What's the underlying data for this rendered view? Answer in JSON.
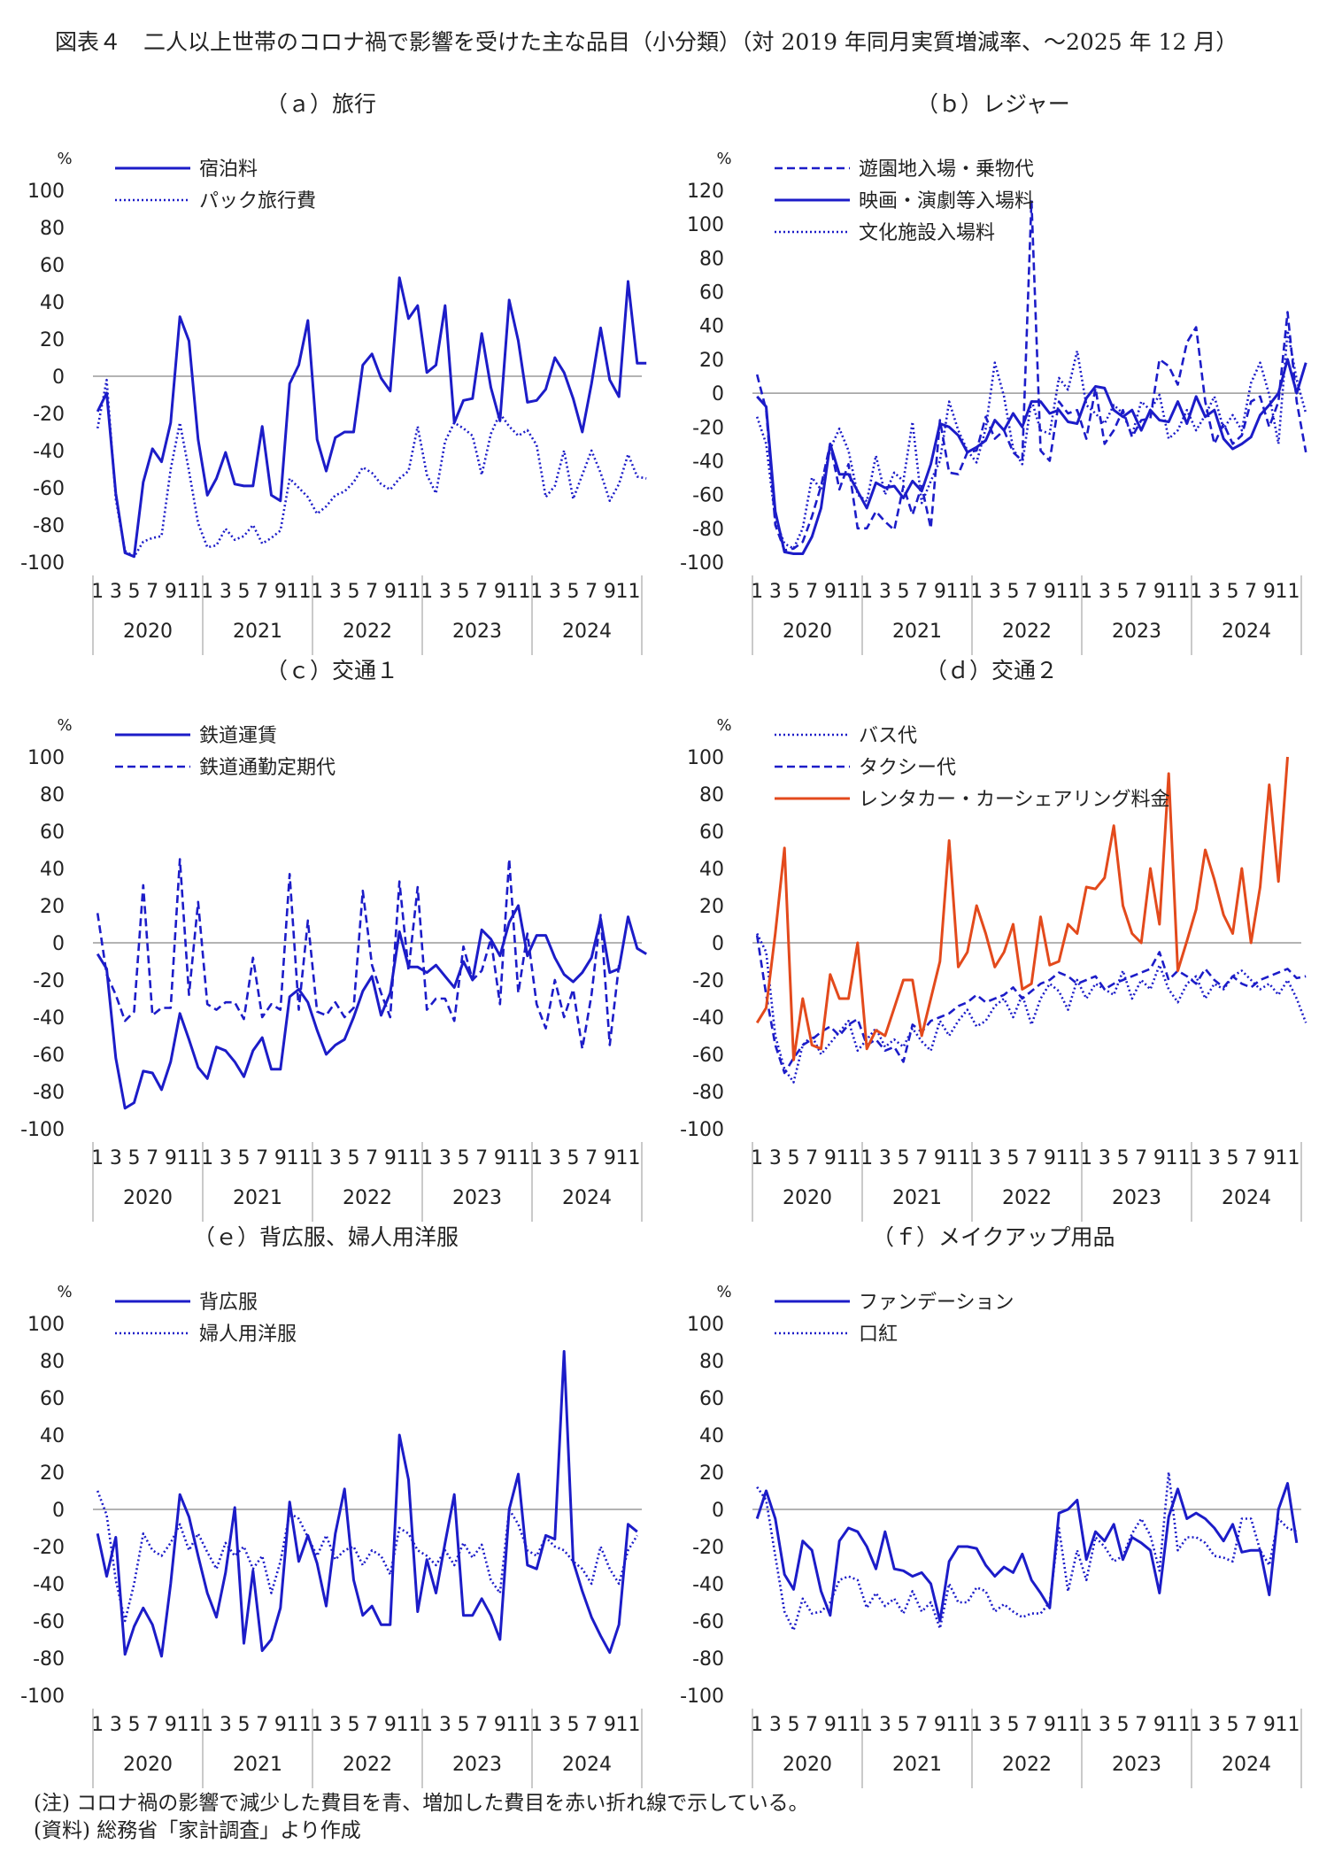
{
  "page_title": "図表４　二人以上世帯のコロナ禍で影響を受けた主な品目（小分類）（対 2019 年同月実質増減率、～2025 年 12 月）",
  "notes": [
    "(注) コロナ禍の影響で減少した費目を青、増加した費目を赤い折れ線で示している。",
    "(資料) 総務省「家計調査」より作成"
  ],
  "chart_data": [
    {
      "type": "line",
      "title": "（ａ）旅行",
      "unit": "%",
      "ylim": [
        -100,
        100
      ],
      "yticks": [
        -100,
        -80,
        -60,
        -40,
        -20,
        0,
        20,
        40,
        60,
        80,
        100
      ],
      "month_ticks": [
        "1",
        "3",
        "5",
        "7",
        "9",
        "11"
      ],
      "years": [
        "2020",
        "2021",
        "2022",
        "2023",
        "2024"
      ],
      "series": [
        {
          "name": "宿泊料",
          "color": "#1c1cc8",
          "style": "solid",
          "values": [
            -19,
            -9,
            -63,
            -95,
            -97,
            -57,
            -39,
            -46,
            -25,
            32,
            19,
            -34,
            -64,
            -55,
            -41,
            -58,
            -59,
            -59,
            -27,
            -64,
            -67,
            -4,
            6,
            30,
            -34,
            -51,
            -33,
            -30,
            -30,
            6,
            12,
            -1,
            -8,
            53,
            31,
            38,
            2,
            6,
            38,
            -25,
            -13,
            -12,
            23,
            -6,
            -24,
            41,
            19,
            -14,
            -13,
            -7,
            10,
            2,
            -12,
            -30,
            -4,
            26,
            -2,
            -11,
            51,
            7,
            7
          ]
        },
        {
          "name": "パック旅行費",
          "color": "#1c1cc8",
          "style": "dotted",
          "values": [
            -28,
            -2,
            -66,
            -94,
            -97,
            -89,
            -87,
            -86,
            -50,
            -25,
            -51,
            -79,
            -92,
            -91,
            -82,
            -88,
            -86,
            -80,
            -90,
            -87,
            -83,
            -55,
            -60,
            -65,
            -74,
            -70,
            -64,
            -62,
            -57,
            -49,
            -52,
            -58,
            -61,
            -55,
            -51,
            -27,
            -53,
            -63,
            -35,
            -25,
            -28,
            -32,
            -53,
            -31,
            -20,
            -27,
            -32,
            -29,
            -37,
            -65,
            -59,
            -40,
            -66,
            -53,
            -40,
            -52,
            -67,
            -58,
            -42,
            -54,
            -55
          ]
        }
      ]
    },
    {
      "type": "line",
      "title": "（ｂ）レジャー",
      "unit": "%",
      "ylim": [
        -100,
        120
      ],
      "yticks": [
        -100,
        -80,
        -60,
        -40,
        -20,
        0,
        20,
        40,
        60,
        80,
        100,
        120
      ],
      "month_ticks": [
        "1",
        "3",
        "5",
        "7",
        "9",
        "11"
      ],
      "years": [
        "2020",
        "2021",
        "2022",
        "2023",
        "2024"
      ],
      "series": [
        {
          "name": "遊園地入場・乗物代",
          "color": "#1c1cc8",
          "style": "dashed",
          "values": [
            11,
            -10,
            -78,
            -93,
            -92,
            -88,
            -73,
            -55,
            -30,
            -57,
            -42,
            -80,
            -80,
            -70,
            -76,
            -81,
            -55,
            -72,
            -55,
            -80,
            -16,
            -47,
            -48,
            -35,
            -34,
            -14,
            -27,
            -22,
            -35,
            -40,
            114,
            -34,
            -40,
            -5,
            -12,
            -10,
            -27,
            3,
            -30,
            -22,
            -10,
            -26,
            -16,
            -15,
            20,
            16,
            5,
            30,
            39,
            -5,
            -30,
            -18,
            -30,
            -25,
            -5,
            -2,
            -20,
            -5,
            48,
            -5,
            -35
          ]
        },
        {
          "name": "映画・演劇等入場料",
          "color": "#1c1cc8",
          "style": "solid",
          "values": [
            -2,
            -8,
            -70,
            -94,
            -95,
            -95,
            -85,
            -68,
            -30,
            -48,
            -48,
            -58,
            -68,
            -53,
            -56,
            -55,
            -62,
            -52,
            -58,
            -42,
            -18,
            -20,
            -25,
            -35,
            -32,
            -28,
            -16,
            -22,
            -12,
            -20,
            -5,
            -5,
            -12,
            -10,
            -17,
            -18,
            -3,
            4,
            3,
            -10,
            -14,
            -10,
            -22,
            -10,
            -16,
            -17,
            -5,
            -18,
            -2,
            -14,
            -10,
            -27,
            -33,
            -30,
            -26,
            -13,
            -7,
            0,
            20,
            0,
            18
          ]
        },
        {
          "name": "文化施設入場料",
          "color": "#1c1cc8",
          "style": "dotted",
          "values": [
            -14,
            -30,
            -75,
            -89,
            -92,
            -80,
            -50,
            -57,
            -33,
            -21,
            -34,
            -60,
            -64,
            -37,
            -60,
            -47,
            -52,
            -17,
            -65,
            -52,
            -40,
            -5,
            -22,
            -34,
            -41,
            -21,
            18,
            -2,
            -33,
            -42,
            -4,
            -22,
            -24,
            9,
            2,
            25,
            -7,
            -12,
            -18,
            -7,
            -12,
            -25,
            -5,
            -10,
            -1,
            -27,
            -22,
            -10,
            -22,
            -13,
            -2,
            -21,
            -13,
            -22,
            6,
            18,
            -1,
            -30,
            37,
            8,
            -12
          ]
        }
      ]
    },
    {
      "type": "line",
      "title": "（ｃ）交通１",
      "unit": "%",
      "ylim": [
        -100,
        100
      ],
      "yticks": [
        -100,
        -80,
        -60,
        -40,
        -20,
        0,
        20,
        40,
        60,
        80,
        100
      ],
      "month_ticks": [
        "1",
        "3",
        "5",
        "7",
        "9",
        "11"
      ],
      "years": [
        "2020",
        "2021",
        "2022",
        "2023",
        "2024"
      ],
      "series": [
        {
          "name": "鉄道運賃",
          "color": "#1c1cc8",
          "style": "solid",
          "values": [
            -6,
            -14,
            -62,
            -89,
            -86,
            -69,
            -70,
            -79,
            -64,
            -38,
            -52,
            -67,
            -73,
            -56,
            -58,
            -64,
            -72,
            -58,
            -51,
            -68,
            -68,
            -29,
            -25,
            -32,
            -47,
            -60,
            -55,
            -52,
            -40,
            -26,
            -18,
            -39,
            -27,
            6,
            -13,
            -13,
            -16,
            -12,
            -18,
            -24,
            -10,
            -20,
            7,
            2,
            -7,
            11,
            20,
            -7,
            4,
            4,
            -8,
            -17,
            -21,
            -16,
            -8,
            13,
            -16,
            -14,
            14,
            -3,
            -6
          ]
        },
        {
          "name": "鉄道通勤定期代",
          "color": "#1c1cc8",
          "style": "dashed",
          "values": [
            16,
            -17,
            -28,
            -42,
            -37,
            31,
            -39,
            -35,
            -35,
            45,
            -28,
            22,
            -33,
            -36,
            -32,
            -32,
            -41,
            -8,
            -40,
            -33,
            -36,
            37,
            -36,
            12,
            -37,
            -39,
            -32,
            -40,
            -35,
            28,
            -12,
            -27,
            -40,
            33,
            -15,
            30,
            -36,
            -30,
            -30,
            -42,
            -2,
            -20,
            -15,
            2,
            -33,
            45,
            -27,
            5,
            -33,
            -46,
            -20,
            -40,
            -25,
            -57,
            -28,
            15,
            -55,
            -12
          ]
        }
      ]
    },
    {
      "type": "line",
      "title": "（ｄ）交通２",
      "unit": "%",
      "ylim": [
        -100,
        100
      ],
      "yticks": [
        -100,
        -80,
        -60,
        -40,
        -20,
        0,
        20,
        40,
        60,
        80,
        100
      ],
      "month_ticks": [
        "1",
        "3",
        "5",
        "7",
        "9",
        "11"
      ],
      "years": [
        "2020",
        "2021",
        "2022",
        "2023",
        "2024"
      ],
      "series": [
        {
          "name": "バス代",
          "color": "#1c1cc8",
          "style": "dotted",
          "values": [
            5,
            -5,
            -50,
            -68,
            -75,
            -55,
            -50,
            -60,
            -54,
            -48,
            -42,
            -58,
            -52,
            -46,
            -56,
            -52,
            -56,
            -46,
            -53,
            -58,
            -42,
            -50,
            -42,
            -36,
            -45,
            -42,
            -34,
            -30,
            -40,
            -28,
            -44,
            -30,
            -22,
            -26,
            -36,
            -20,
            -30,
            -22,
            -25,
            -28,
            -15,
            -30,
            -20,
            -25,
            -12,
            -25,
            -32,
            -22,
            -18,
            -30,
            -22,
            -25,
            -18,
            -15,
            -20,
            -25,
            -22,
            -28,
            -20,
            -30,
            -43
          ]
        },
        {
          "name": "タクシー代",
          "color": "#1c1cc8",
          "style": "dashed",
          "values": [
            4,
            -28,
            -55,
            -70,
            -62,
            -55,
            -52,
            -48,
            -45,
            -50,
            -44,
            -41,
            -55,
            -52,
            -58,
            -56,
            -64,
            -44,
            -48,
            -42,
            -40,
            -38,
            -34,
            -32,
            -28,
            -32,
            -30,
            -28,
            -24,
            -30,
            -26,
            -22,
            -20,
            -16,
            -18,
            -22,
            -20,
            -18,
            -25,
            -22,
            -20,
            -18,
            -16,
            -14,
            -5,
            -20,
            -15,
            -18,
            -22,
            -14,
            -20,
            -24,
            -18,
            -22,
            -24,
            -20,
            -18,
            -16,
            -14,
            -19,
            -18
          ]
        },
        {
          "name": "レンタカー・カーシェアリング料金",
          "color": "#e34a1c",
          "style": "solid",
          "values": [
            -43,
            -35,
            5,
            51,
            -63,
            -30,
            -55,
            -57,
            -17,
            -30,
            -30,
            0,
            -57,
            -47,
            -50,
            -35,
            -20,
            -20,
            -50,
            -30,
            -10,
            55,
            -13,
            -5,
            20,
            5,
            -13,
            -5,
            10,
            -25,
            -22,
            14,
            -12,
            -10,
            10,
            5,
            30,
            29,
            35,
            63,
            20,
            5,
            0,
            40,
            10,
            91,
            -15,
            1,
            18,
            50,
            34,
            15,
            5,
            40,
            0,
            30,
            85,
            33,
            100
          ]
        }
      ]
    },
    {
      "type": "line",
      "title": "（ｅ）背広服、婦人用洋服",
      "unit": "%",
      "ylim": [
        -100,
        100
      ],
      "yticks": [
        -100,
        -80,
        -60,
        -40,
        -20,
        0,
        20,
        40,
        60,
        80,
        100
      ],
      "month_ticks": [
        "1",
        "3",
        "5",
        "7",
        "9",
        "11"
      ],
      "years": [
        "2020",
        "2021",
        "2022",
        "2023",
        "2024"
      ],
      "series": [
        {
          "name": "背広服",
          "color": "#1c1cc8",
          "style": "solid",
          "values": [
            -13,
            -36,
            -15,
            -78,
            -63,
            -53,
            -62,
            -79,
            -40,
            8,
            -4,
            -25,
            -45,
            -58,
            -34,
            1,
            -72,
            -33,
            -76,
            -70,
            -53,
            4,
            -28,
            -14,
            -29,
            -52,
            -13,
            11,
            -38,
            -57,
            -52,
            -62,
            -62,
            40,
            16,
            -55,
            -27,
            -45,
            -18,
            8,
            -57,
            -57,
            -48,
            -57,
            -70,
            0,
            19,
            -30,
            -32,
            -14,
            -16,
            85,
            -28,
            -44,
            -58,
            -68,
            -77,
            -62,
            -8,
            -12
          ]
        },
        {
          "name": "婦人用洋服",
          "color": "#1c1cc8",
          "style": "dotted",
          "values": [
            10,
            -3,
            -38,
            -60,
            -40,
            -13,
            -22,
            -25,
            -18,
            -8,
            -22,
            -13,
            -23,
            -32,
            -18,
            -25,
            -20,
            -32,
            -25,
            -45,
            -28,
            -2,
            -5,
            -15,
            -25,
            -14,
            -27,
            -22,
            -20,
            -30,
            -22,
            -25,
            -35,
            -10,
            -13,
            -22,
            -25,
            -30,
            -22,
            -30,
            -18,
            -26,
            -19,
            -38,
            -45,
            0,
            -8,
            -22,
            -25,
            -15,
            -20,
            -22,
            -28,
            -32,
            -40,
            -20,
            -32,
            -40,
            -22,
            -14
          ]
        }
      ]
    },
    {
      "type": "line",
      "title": "（ｆ）メイクアップ用品",
      "unit": "%",
      "ylim": [
        -100,
        100
      ],
      "yticks": [
        -100,
        -80,
        -60,
        -40,
        -20,
        0,
        20,
        40,
        60,
        80,
        100
      ],
      "month_ticks": [
        "1",
        "3",
        "5",
        "7",
        "9",
        "11"
      ],
      "years": [
        "2020",
        "2021",
        "2022",
        "2023",
        "2024"
      ],
      "series": [
        {
          "name": "ファンデーション",
          "color": "#1c1cc8",
          "style": "solid",
          "values": [
            -5,
            10,
            -5,
            -35,
            -43,
            -17,
            -22,
            -44,
            -57,
            -17,
            -10,
            -12,
            -20,
            -32,
            -12,
            -32,
            -33,
            -36,
            -34,
            -40,
            -60,
            -28,
            -20,
            -20,
            -21,
            -30,
            -36,
            -31,
            -34,
            -24,
            -38,
            -45,
            -53,
            -2,
            0,
            5,
            -27,
            -12,
            -17,
            -8,
            -27,
            -15,
            -18,
            -22,
            -45,
            -4,
            11,
            -5,
            -2,
            -5,
            -10,
            -17,
            -8,
            -23,
            -22,
            -22,
            -46,
            0,
            14,
            -18
          ]
        },
        {
          "name": "口紅",
          "color": "#1c1cc8",
          "style": "dotted",
          "values": [
            12,
            5,
            -25,
            -55,
            -65,
            -48,
            -56,
            -55,
            -50,
            -38,
            -36,
            -38,
            -53,
            -45,
            -52,
            -48,
            -56,
            -44,
            -55,
            -50,
            -64,
            -40,
            -50,
            -50,
            -42,
            -44,
            -55,
            -51,
            -55,
            -58,
            -56,
            -56,
            -50,
            -10,
            -44,
            -22,
            -38,
            -15,
            -20,
            -28,
            -25,
            -13,
            -5,
            -14,
            -33,
            20,
            -22,
            -15,
            -15,
            -18,
            -25,
            -26,
            -28,
            -5,
            -5,
            -22,
            -30,
            -5,
            -10,
            -12
          ]
        }
      ]
    }
  ]
}
